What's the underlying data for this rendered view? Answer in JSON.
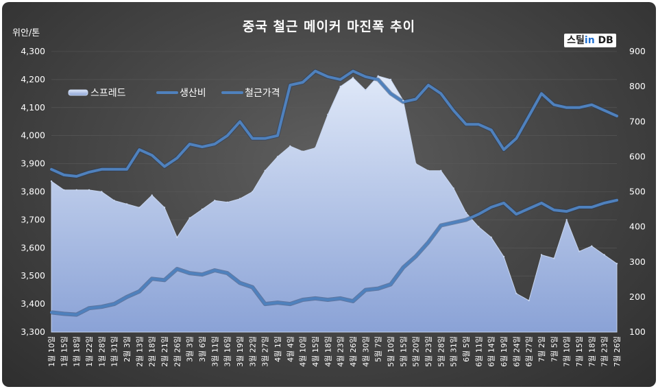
{
  "chart_data": {
    "type": "line",
    "title": "중국 철근 메이커 마진폭 추이",
    "unit_label": "위안/톤",
    "logo": {
      "part1": "스틸",
      "part2": "in",
      "part3": " DB"
    },
    "y_left": {
      "min": 3300,
      "max": 4300,
      "ticks": [
        "3,300",
        "3,400",
        "3,500",
        "3,600",
        "3,700",
        "3,800",
        "3,900",
        "4,000",
        "4,100",
        "4,200",
        "4,300"
      ]
    },
    "y_right": {
      "min": 100,
      "max": 900,
      "ticks": [
        "100",
        "200",
        "300",
        "400",
        "500",
        "600",
        "700",
        "800",
        "900"
      ]
    },
    "x_labels": [
      "1월 10일",
      "1월 15일",
      "1월 18일",
      "1월 22일",
      "1월 28일",
      "1월 31일",
      "2월 3일",
      "2월 13일",
      "2월 18일",
      "2월 21일",
      "2월 26일",
      "3월 3일",
      "3월 6일",
      "3월 11일",
      "3월 16일",
      "3월 19일",
      "3월 22일",
      "3월 27일",
      "4월 1일",
      "4월 4일",
      "4월 10일",
      "4월 15일",
      "4월 18일",
      "4월 23일",
      "4월 26일",
      "4월 30일",
      "5월 7일",
      "5월 10일",
      "5월 15일",
      "5월 20일",
      "5월 23일",
      "5월 28일",
      "5월 31일",
      "6월 5일",
      "6월 11일",
      "6월 14일",
      "6월 19일",
      "6월 24일",
      "6월 27일",
      "7월 2일",
      "7월 5일",
      "7월 10일",
      "7월 15일",
      "7월 18일",
      "7월 23일",
      "7월 26일"
    ],
    "legend": {
      "position": "top-left",
      "items": [
        "스프레드",
        "생산비",
        "철근가격"
      ]
    },
    "colors": {
      "spread_light": "#dce6f8",
      "spread_dark": "#8ea6d8",
      "line": "#4f81bd",
      "text": "#ffffff"
    },
    "series": [
      {
        "name": "스프레드",
        "axis": "right",
        "style": "area",
        "values": [
          530,
          505,
          505,
          505,
          500,
          475,
          465,
          455,
          490,
          455,
          370,
          425,
          450,
          475,
          470,
          480,
          500,
          560,
          600,
          630,
          615,
          625,
          720,
          800,
          825,
          790,
          830,
          820,
          760,
          580,
          560,
          560,
          510,
          440,
          400,
          370,
          315,
          210,
          190,
          320,
          310,
          420,
          330,
          345,
          320,
          295
        ]
      },
      {
        "name": "생산비",
        "axis": "left",
        "style": "line",
        "values": [
          3370,
          3365,
          3362,
          3385,
          3390,
          3400,
          3425,
          3445,
          3490,
          3485,
          3525,
          3510,
          3505,
          3520,
          3510,
          3475,
          3460,
          3400,
          3405,
          3400,
          3415,
          3420,
          3415,
          3420,
          3410,
          3450,
          3455,
          3470,
          3530,
          3570,
          3620,
          3680,
          3690,
          3700,
          3720,
          3745,
          3760,
          3720,
          3740,
          3760,
          3735,
          3730,
          3745,
          3745,
          3760,
          3770
        ]
      },
      {
        "name": "철근가격",
        "axis": "left",
        "style": "line",
        "values": [
          3880,
          3860,
          3855,
          3870,
          3880,
          3880,
          3880,
          3950,
          3930,
          3890,
          3920,
          3970,
          3960,
          3970,
          4000,
          4050,
          3990,
          3990,
          4000,
          4180,
          4190,
          4230,
          4210,
          4200,
          4230,
          4210,
          4200,
          4150,
          4120,
          4130,
          4180,
          4150,
          4090,
          4040,
          4040,
          4020,
          3950,
          3990,
          4070,
          4150,
          4110,
          4100,
          4100,
          4110,
          4090,
          4070
        ]
      }
    ]
  }
}
